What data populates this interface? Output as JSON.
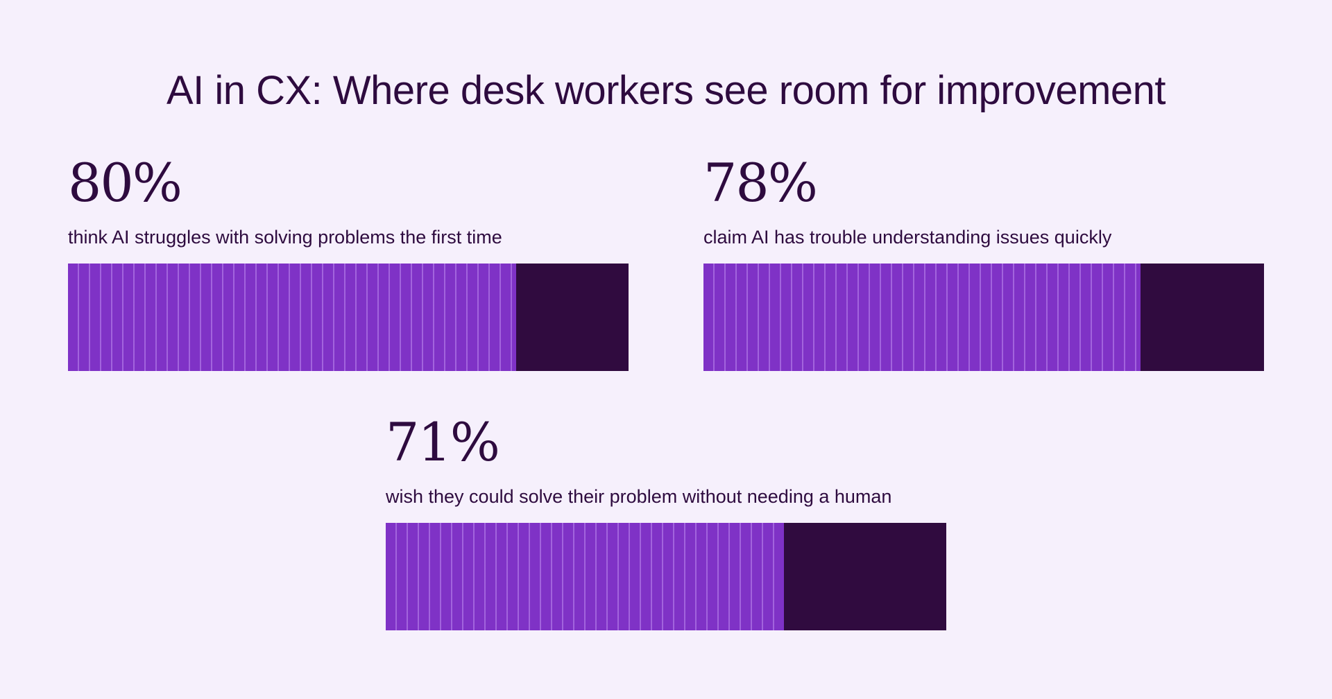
{
  "title": "AI in CX: Where desk workers see room for improvement",
  "chart_data": {
    "type": "bar",
    "title": "AI in CX: Where desk workers see room for improvement",
    "ylim": [
      0,
      100
    ],
    "stats": [
      {
        "value": 80,
        "label": "80%",
        "description": "think AI struggles with solving problems the first time"
      },
      {
        "value": 78,
        "label": "78%",
        "description": "claim AI has trouble understanding issues quickly"
      },
      {
        "value": 71,
        "label": "71%",
        "description": "wish they could solve their problem without needing a human"
      }
    ],
    "colors": {
      "filled": "#7f32c6",
      "remaining": "#300b3f",
      "text": "#2e0b3f",
      "background": "#f6f0fc"
    }
  }
}
